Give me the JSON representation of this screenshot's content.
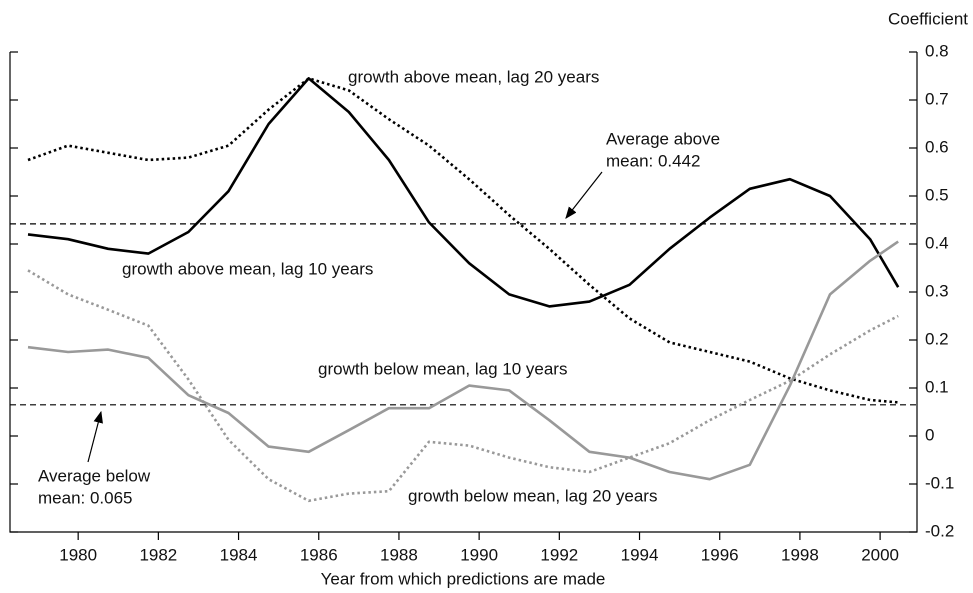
{
  "chart_data": {
    "type": "line",
    "y_axis_label": "Coefficient",
    "x_axis_label": "Year from which predictions are made",
    "x": [
      1978.75,
      1979.75,
      1980.75,
      1981.75,
      1982.75,
      1983.75,
      1984.75,
      1985.75,
      1986.75,
      1987.75,
      1988.75,
      1989.75,
      1990.75,
      1991.75,
      1992.75,
      1993.75,
      1994.75,
      1995.75,
      1996.75,
      1997.75,
      1998.75,
      1999.75,
      2000.45
    ],
    "series": [
      {
        "name": "growth above mean, lag 10 years",
        "color": "#000000",
        "dash": "solid",
        "values": [
          0.42,
          0.41,
          0.39,
          0.38,
          0.425,
          0.51,
          0.65,
          0.745,
          0.675,
          0.575,
          0.445,
          0.36,
          0.295,
          0.27,
          0.28,
          0.315,
          0.39,
          0.455,
          0.515,
          0.535,
          0.5,
          0.41,
          0.31
        ]
      },
      {
        "name": "growth above mean, lag 20 years",
        "color": "#000000",
        "dash": "dotted",
        "values": [
          0.575,
          0.605,
          0.59,
          0.575,
          0.58,
          0.605,
          0.68,
          0.745,
          0.72,
          0.66,
          0.605,
          0.535,
          0.46,
          0.39,
          0.315,
          0.245,
          0.195,
          0.175,
          0.155,
          0.12,
          0.095,
          0.075,
          0.07
        ]
      },
      {
        "name": "growth below mean, lag 10 years",
        "color": "#999999",
        "dash": "solid",
        "values": [
          0.185,
          0.175,
          0.18,
          0.163,
          0.085,
          0.048,
          -0.022,
          -0.033,
          0.012,
          0.058,
          0.058,
          0.105,
          0.095,
          0.033,
          -0.033,
          -0.045,
          -0.075,
          -0.09,
          -0.06,
          0.105,
          0.295,
          0.365,
          0.405
        ]
      },
      {
        "name": "growth below mean, lag 20 years",
        "color": "#999999",
        "dash": "dotted",
        "values": [
          0.345,
          0.295,
          0.263,
          0.23,
          0.118,
          -0.008,
          -0.09,
          -0.135,
          -0.12,
          -0.115,
          -0.012,
          -0.02,
          -0.045,
          -0.065,
          -0.075,
          -0.045,
          -0.015,
          0.033,
          0.075,
          0.115,
          0.17,
          0.22,
          0.25
        ]
      }
    ],
    "reference_lines": [
      {
        "value": 0.442,
        "label": [
          "Average above",
          "mean: 0.442"
        ]
      },
      {
        "value": 0.065,
        "label": [
          "Average below",
          "mean: 0.065"
        ]
      }
    ],
    "xlim": [
      1978.3,
      2000.92
    ],
    "xticks": [
      1980,
      1982,
      1984,
      1986,
      1988,
      1990,
      1992,
      1994,
      1996,
      1998,
      2000
    ],
    "ylim": [
      -0.2,
      0.8
    ],
    "yticks": [
      -0.2,
      -0.1,
      0,
      0.1,
      0.2,
      0.3,
      0.4,
      0.5,
      0.6,
      0.7,
      0.8
    ],
    "y_axis_side": "right"
  }
}
